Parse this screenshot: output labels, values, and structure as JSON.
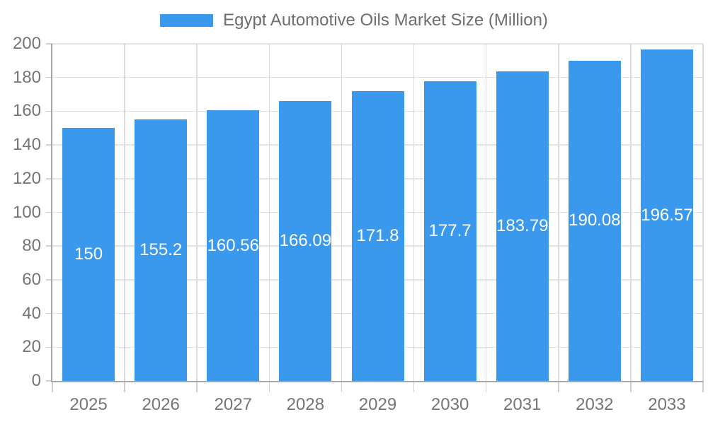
{
  "legend": {
    "label": "Egypt Automotive Oils Market Size (Million)"
  },
  "chart_data": {
    "type": "bar",
    "title": "Egypt Automotive Oils Market Size (Million)",
    "categories": [
      "2025",
      "2026",
      "2027",
      "2028",
      "2029",
      "2030",
      "2031",
      "2032",
      "2033"
    ],
    "values": [
      150,
      155.2,
      160.56,
      166.09,
      171.8,
      177.7,
      183.79,
      190.08,
      196.57
    ],
    "value_labels": [
      "150",
      "155.2",
      "160.56",
      "166.09",
      "171.8",
      "177.7",
      "183.79",
      "190.08",
      "196.57"
    ],
    "xlabel": "",
    "ylabel": "",
    "ylim": [
      0,
      200
    ],
    "ytick_step": 20,
    "ytick_labels": [
      "0",
      "20",
      "40",
      "60",
      "80",
      "100",
      "120",
      "140",
      "160",
      "180",
      "200"
    ],
    "grid": true,
    "legend_position": "top",
    "colors": {
      "bar": "#3A99ED",
      "grid": "#E4E4E4",
      "vgrid": "#DBDBDB",
      "axis": "#A6A6A6",
      "tick": "#CFCFCF",
      "text": "#757575",
      "value_label": "#FFFFFF",
      "background": "#FFFFFF"
    }
  }
}
